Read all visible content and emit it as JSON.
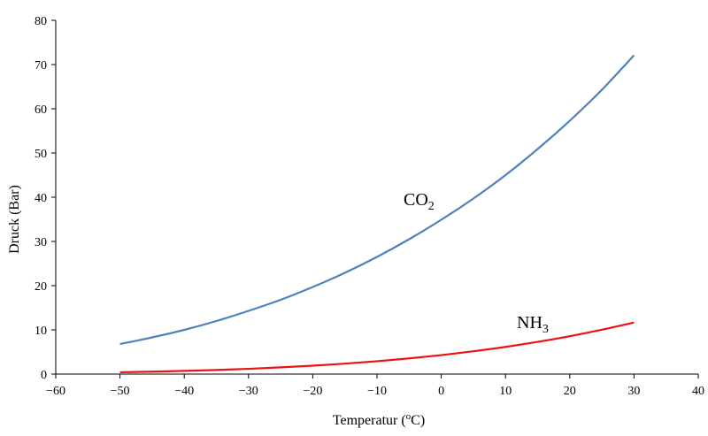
{
  "chart_data": {
    "type": "line",
    "xlabel": {
      "main": "Temperatur (",
      "sup": "o",
      "unit": "C)"
    },
    "ylabel": "Druck (Bar)",
    "xlim": [
      -60,
      40
    ],
    "ylim": [
      0,
      80
    ],
    "x_ticks": [
      -60,
      -50,
      -40,
      -30,
      -20,
      -10,
      0,
      10,
      20,
      30,
      40
    ],
    "y_ticks": [
      0,
      10,
      20,
      30,
      40,
      50,
      60,
      70,
      80
    ],
    "x_tick_labels": [
      "−60",
      "−50",
      "−40",
      "−30",
      "−20",
      "−10",
      "0",
      "10",
      "20",
      "30",
      "40"
    ],
    "y_tick_labels": [
      "0",
      "10",
      "20",
      "30",
      "40",
      "50",
      "60",
      "70",
      "80"
    ],
    "grid": false,
    "series": [
      {
        "name": "CO2",
        "label": {
          "main": "CO",
          "sub": "2"
        },
        "color": "#4f81bd",
        "x": [
          -50,
          -45,
          -40,
          -35,
          -30,
          -25,
          -20,
          -15,
          -10,
          -5,
          0,
          5,
          10,
          15,
          20,
          25,
          30
        ],
        "y": [
          6.8,
          8.3,
          10.0,
          12.0,
          14.3,
          16.8,
          19.7,
          22.9,
          26.5,
          30.5,
          34.9,
          39.7,
          45.0,
          50.9,
          57.3,
          64.3,
          72.1
        ]
      },
      {
        "name": "NH3",
        "label": {
          "main": "NH",
          "sub": "3"
        },
        "color": "#ee1111",
        "x": [
          -50,
          -45,
          -40,
          -35,
          -30,
          -25,
          -20,
          -15,
          -10,
          -5,
          0,
          5,
          10,
          15,
          20,
          25,
          30
        ],
        "y": [
          0.41,
          0.55,
          0.72,
          0.93,
          1.19,
          1.52,
          1.9,
          2.36,
          2.91,
          3.55,
          4.29,
          5.16,
          6.15,
          7.28,
          8.57,
          10.03,
          11.67
        ]
      }
    ]
  }
}
